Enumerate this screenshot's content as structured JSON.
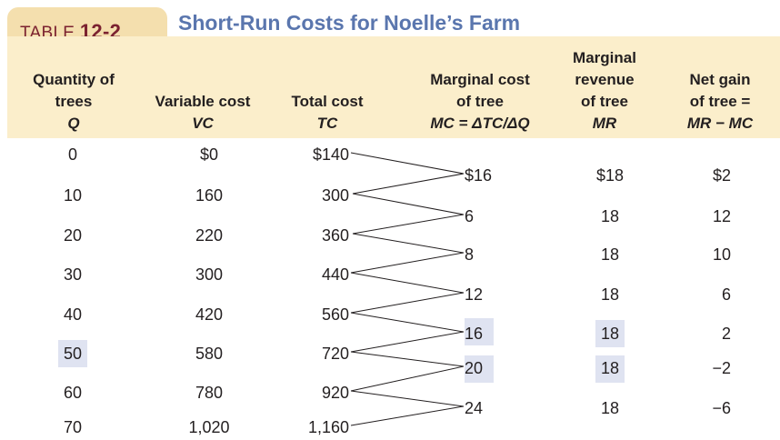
{
  "table_label": {
    "prefix": "TABLE",
    "number": "12-2"
  },
  "title": "Short-Run Costs for Noelle’s Farm",
  "headers": {
    "q": {
      "line1": "Quantity of",
      "line2": "trees",
      "line3": "Q"
    },
    "vc": {
      "line1": "Variable cost",
      "line2": "VC"
    },
    "tc": {
      "line1": "Total cost",
      "line2": "TC"
    },
    "mc": {
      "line1": "Marginal cost",
      "line2": "of tree",
      "line3": "MC = ΔTC/ΔQ"
    },
    "mr": {
      "line1": "Marginal",
      "line2": "revenue",
      "line3": "of tree",
      "line4": "MR"
    },
    "net": {
      "line1": "Net gain",
      "line2": "of tree =",
      "line3": "MR − MC"
    }
  },
  "rows": [
    {
      "q": "0",
      "vc": "$0",
      "tc": "$140"
    },
    {
      "q": "10",
      "vc": "160",
      "tc": "300"
    },
    {
      "q": "20",
      "vc": "220",
      "tc": "360"
    },
    {
      "q": "30",
      "vc": "300",
      "tc": "440"
    },
    {
      "q": "40",
      "vc": "420",
      "tc": "560"
    },
    {
      "q": "50",
      "vc": "580",
      "tc": "720"
    },
    {
      "q": "60",
      "vc": "780",
      "tc": "920"
    },
    {
      "q": "70",
      "vc": "1,020",
      "tc": "1,160"
    }
  ],
  "marginals": [
    {
      "mc": "$16",
      "mr": "$18",
      "net": "$2"
    },
    {
      "mc": "6",
      "mr": "18",
      "net": "12"
    },
    {
      "mc": "8",
      "mr": "18",
      "net": "10"
    },
    {
      "mc": "12",
      "mr": "18",
      "net": "6"
    },
    {
      "mc": "16",
      "mr": "18",
      "net": "2"
    },
    {
      "mc": "20",
      "mr": "18",
      "net": "−2"
    },
    {
      "mc": "24",
      "mr": "18",
      "net": "−6"
    }
  ],
  "highlight_color": "#dfe3f1"
}
